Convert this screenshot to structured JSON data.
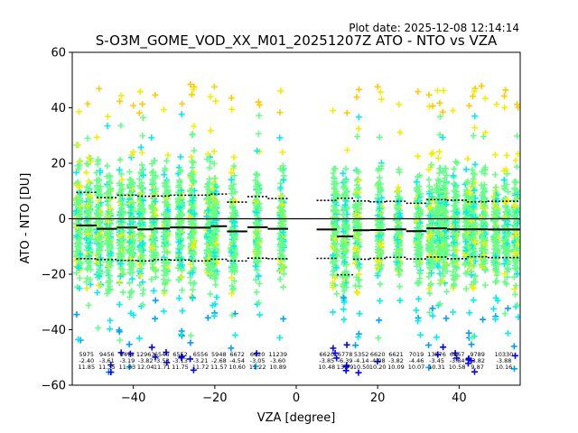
{
  "plot_date": "Plot date: 2025-12-08 12:14:14",
  "colors": {
    "col_blue": "#0000ff",
    "col_dodger": "#00a0ff",
    "col_cyan": "#00f0f0",
    "col_green": "#66ff88",
    "col_yellow": "#f0f000",
    "col_gold": "#ffcc00",
    "mean_line": "#000000",
    "zero_line": "#000000"
  },
  "chart_data": {
    "type": "scatter",
    "title": "S-O3M_GOME_VOD_XX_M01_20251207Z ATO - NTO vs VZA",
    "xlabel": "VZA [degree]",
    "ylabel": "ATO - NTO [DU]",
    "xlim": [
      -55,
      55
    ],
    "ylim": [
      -60,
      60
    ],
    "xticks": [
      -40,
      -20,
      0,
      20,
      40
    ],
    "yticks": [
      -60,
      -40,
      -20,
      0,
      20,
      40,
      60
    ],
    "grid": false,
    "zero_line": 0,
    "scan_columns_vza": [
      -53.5,
      -51,
      -48.5,
      -46,
      -43,
      -40.5,
      -38,
      -35,
      -32,
      -28.5,
      -25.5,
      -21.5,
      -20,
      -15.5,
      -9.5,
      -3.5,
      9.5,
      12,
      15,
      20.5,
      25,
      30,
      33,
      35,
      36.5,
      39,
      42,
      43.5,
      46,
      49,
      51.5,
      54
    ],
    "bins": [
      {
        "x_range": [
          -54,
          -49
        ],
        "mean": -2.4,
        "upper": 9.5,
        "lower": -14.4,
        "std": 11.85,
        "count": "5975"
      },
      {
        "x_range": [
          -49,
          -44
        ],
        "mean": -3.61,
        "upper": 7.6,
        "lower": -14.7,
        "std": 11.35,
        "count": "9456"
      },
      {
        "x_range": [
          -44,
          -39
        ],
        "mean": -3.19,
        "upper": 8.5,
        "lower": -15.0,
        "std": 11.83,
        "count": "9472"
      },
      {
        "x_range": [
          -39,
          -35
        ],
        "mean": -3.82,
        "upper": 8.1,
        "lower": -15.2,
        "std": 12.04,
        "count": "12963"
      },
      {
        "x_range": [
          -35,
          -31
        ],
        "mean": -3.53,
        "upper": 8.2,
        "lower": -14.7,
        "std": 11.71,
        "count": "6546"
      },
      {
        "x_range": [
          -31,
          -26
        ],
        "mean": -3.13,
        "upper": 8.5,
        "lower": -14.9,
        "std": 11.75,
        "count": "6552"
      },
      {
        "x_range": [
          -26,
          -21
        ],
        "mean": -3.21,
        "upper": 8.5,
        "lower": -15.2,
        "std": 11.72,
        "count": "6556"
      },
      {
        "x_range": [
          -21,
          -17
        ],
        "mean": -2.68,
        "upper": 8.9,
        "lower": -14.6,
        "std": 11.57,
        "count": "5948"
      },
      {
        "x_range": [
          -17,
          -12
        ],
        "mean": -4.54,
        "upper": 6.0,
        "lower": -15.2,
        "std": 10.6,
        "count": "6672"
      },
      {
        "x_range": [
          -12,
          -7
        ],
        "mean": -3.05,
        "upper": 8.0,
        "lower": -14.2,
        "std": 11.22,
        "count": "6620"
      },
      {
        "x_range": [
          -7,
          -2
        ],
        "mean": -3.6,
        "upper": 7.3,
        "lower": -14.4,
        "std": 10.89,
        "count": "11239"
      },
      {
        "x_range": [
          5,
          10
        ],
        "mean": -3.85,
        "upper": 6.6,
        "lower": -14.3,
        "std": 10.48,
        "count": "6620"
      },
      {
        "x_range": [
          10,
          14
        ],
        "mean": -6.39,
        "upper": 7.4,
        "lower": -20.2,
        "std": 13.79,
        "count": "6778"
      },
      {
        "x_range": [
          14,
          18
        ],
        "mean": -4.14,
        "upper": 6.4,
        "lower": -14.6,
        "std": 10.5,
        "count": "5352"
      },
      {
        "x_range": [
          18,
          22
        ],
        "mean": -4.08,
        "upper": 6.1,
        "lower": -14.3,
        "std": 10.2,
        "count": "6620"
      },
      {
        "x_range": [
          22,
          27
        ],
        "mean": -3.82,
        "upper": 6.3,
        "lower": -13.9,
        "std": 10.09,
        "count": "6621"
      },
      {
        "x_range": [
          27,
          32
        ],
        "mean": -4.46,
        "upper": 5.6,
        "lower": -14.5,
        "std": 10.07,
        "count": "7019"
      },
      {
        "x_range": [
          32,
          37
        ],
        "mean": -3.45,
        "upper": 6.9,
        "lower": -13.8,
        "std": 10.31,
        "count": "13576"
      },
      {
        "x_range": [
          37,
          42
        ],
        "mean": -3.84,
        "upper": 6.7,
        "lower": -14.4,
        "std": 10.58,
        "count": "6867"
      },
      {
        "x_range": [
          42,
          47
        ],
        "mean": -3.82,
        "upper": 6.1,
        "lower": -13.7,
        "std": 9.87,
        "count": "9789"
      },
      {
        "x_range": [
          47,
          55
        ],
        "mean": -3.88,
        "upper": 6.3,
        "lower": -14.0,
        "std": 10.16,
        "count": "10330"
      }
    ]
  }
}
